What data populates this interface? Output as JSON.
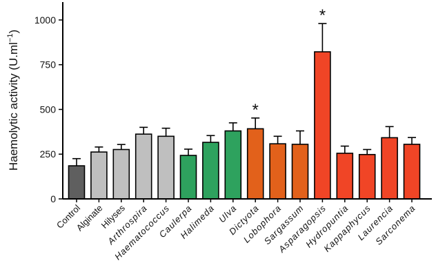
{
  "chart_data": {
    "type": "bar",
    "ylabel": "Haemolytic activity  (U.ml",
    "ylabel_sup": "−1",
    "ylabel_close": ")",
    "ylim": [
      0,
      1100
    ],
    "yticks": [
      0,
      250,
      500,
      750,
      1000
    ],
    "grid": false,
    "significance_marker": "*",
    "categories": [
      {
        "label": "Control",
        "italic": false,
        "value": 185,
        "error": 40,
        "color": "#5f5f5f",
        "significant": false
      },
      {
        "label": "Alginate",
        "italic": false,
        "value": 262,
        "error": 28,
        "color": "#bfbfbf",
        "significant": false
      },
      {
        "label": "Hilyses",
        "italic": false,
        "value": 276,
        "error": 28,
        "color": "#bfbfbf",
        "significant": false
      },
      {
        "label": "Arthrospira",
        "italic": true,
        "value": 362,
        "error": 38,
        "color": "#bfbfbf",
        "significant": false
      },
      {
        "label": "Haematococcus",
        "italic": true,
        "value": 350,
        "error": 45,
        "color": "#bfbfbf",
        "significant": false
      },
      {
        "label": "Caulerpa",
        "italic": true,
        "value": 243,
        "error": 35,
        "color": "#2ea25e",
        "significant": false
      },
      {
        "label": "Halimeda",
        "italic": true,
        "value": 316,
        "error": 38,
        "color": "#2ea25e",
        "significant": false
      },
      {
        "label": "Ulva",
        "italic": true,
        "value": 380,
        "error": 45,
        "color": "#2ea25e",
        "significant": false
      },
      {
        "label": "Dictyota",
        "italic": true,
        "value": 392,
        "error": 60,
        "color": "#e2611b",
        "significant": true
      },
      {
        "label": "Lobophora",
        "italic": true,
        "value": 308,
        "error": 42,
        "color": "#e2611b",
        "significant": false
      },
      {
        "label": "Sargassum",
        "italic": true,
        "value": 305,
        "error": 75,
        "color": "#e2611b",
        "significant": false
      },
      {
        "label": "Asparagopsis",
        "italic": true,
        "value": 822,
        "error": 158,
        "color": "#f04526",
        "significant": true
      },
      {
        "label": "Hydropuntia",
        "italic": true,
        "value": 255,
        "error": 40,
        "color": "#f04526",
        "significant": false
      },
      {
        "label": "Kappaphycus",
        "italic": true,
        "value": 248,
        "error": 28,
        "color": "#f04526",
        "significant": false
      },
      {
        "label": "Laurencia",
        "italic": true,
        "value": 342,
        "error": 62,
        "color": "#f04526",
        "significant": false
      },
      {
        "label": "Sarconema",
        "italic": true,
        "value": 305,
        "error": 38,
        "color": "#f04526",
        "significant": false
      }
    ]
  }
}
